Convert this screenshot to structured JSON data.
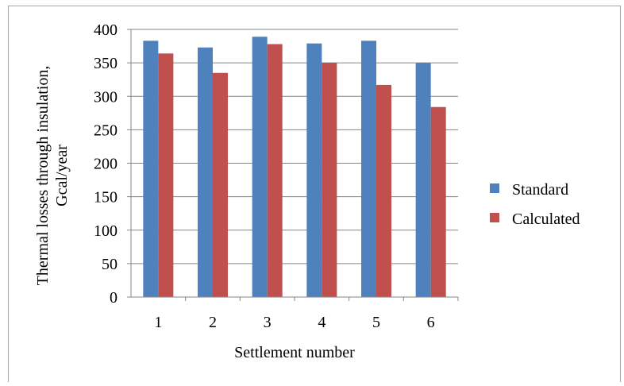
{
  "chart_data": {
    "type": "bar",
    "title": "",
    "xlabel": "Settlement number",
    "ylabel_line1": "Thermal losses through insulation,",
    "ylabel_line2": "Gcal/year",
    "categories": [
      "1",
      "2",
      "3",
      "4",
      "5",
      "6"
    ],
    "series": [
      {
        "name": "Standard",
        "color": "#4f81bd",
        "values": [
          383,
          373,
          389,
          379,
          383,
          350
        ]
      },
      {
        "name": "Calculated",
        "color": "#c0504d",
        "values": [
          364,
          335,
          378,
          350,
          317,
          284
        ]
      }
    ],
    "ylim": [
      0,
      400
    ],
    "yticks": [
      "0",
      "50",
      "100",
      "150",
      "200",
      "250",
      "300",
      "350",
      "400"
    ],
    "grid": true,
    "legend_position": "right"
  }
}
